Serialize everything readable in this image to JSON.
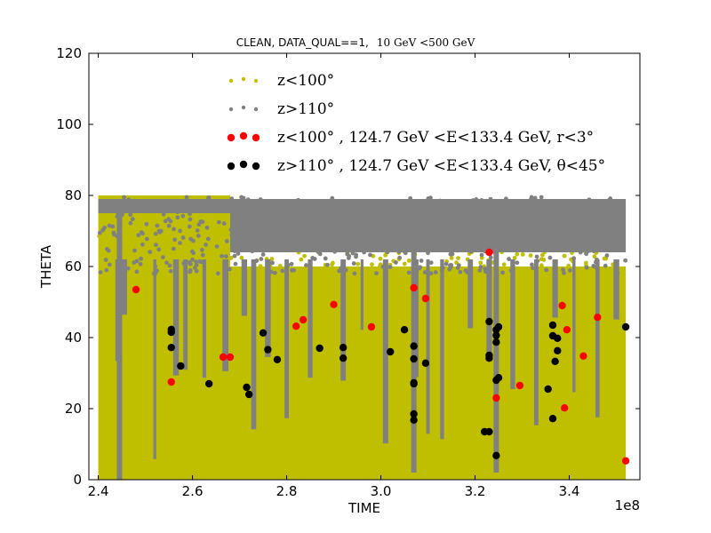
{
  "chart_data": {
    "type": "scatter",
    "title": "CLEAN, DATA_QUAL==1,",
    "title_math": "10 GeV <500 GeV",
    "xlabel": "TIME",
    "ylabel": "THETA",
    "x_offset_label": "1e8",
    "xlim": [
      2.38,
      3.55
    ],
    "ylim": [
      0,
      120
    ],
    "x_ticks": [
      "2.4",
      "2.6",
      "2.8",
      "3.0",
      "3.2",
      "3.4"
    ],
    "x_tick_values": [
      2.4,
      2.6,
      2.8,
      3.0,
      3.2,
      3.4
    ],
    "y_ticks": [
      "0",
      "20",
      "40",
      "60",
      "80",
      "100",
      "120"
    ],
    "y_tick_values": [
      0,
      20,
      40,
      60,
      80,
      100,
      120
    ],
    "grid": false,
    "legend_placement": "top-center",
    "series": [
      {
        "name": "z<100°",
        "color": "#bfbf00",
        "marker_size": "small",
        "band": {
          "x": [
            2.4,
            3.52
          ],
          "y": [
            0,
            80
          ],
          "upper_y": 60
        }
      },
      {
        "name": "z>110°",
        "color": "#808080",
        "marker_size": "small",
        "band": {
          "x": [
            2.4,
            3.52
          ],
          "y": [
            60,
            79
          ],
          "x_dense_start": 2.68
        }
      },
      {
        "name": "z<100° , 124.7 GeV <E<133.4 GeV, r<3°",
        "color": "#ff0000",
        "marker_size": "large",
        "points": [
          [
            2.48,
            53.5
          ],
          [
            2.555,
            27.5
          ],
          [
            2.665,
            34.5
          ],
          [
            2.68,
            34.5
          ],
          [
            2.82,
            43.2
          ],
          [
            2.835,
            45
          ],
          [
            2.9,
            49.3
          ],
          [
            2.98,
            43
          ],
          [
            3.07,
            54
          ],
          [
            3.095,
            51
          ],
          [
            3.23,
            64
          ],
          [
            3.245,
            23
          ],
          [
            3.295,
            26.5
          ],
          [
            3.385,
            49
          ],
          [
            3.395,
            42.2
          ],
          [
            3.39,
            20.2
          ],
          [
            3.43,
            34.8
          ],
          [
            3.46,
            45.7
          ],
          [
            3.52,
            5.3
          ]
        ]
      },
      {
        "name": "z>110° , 124.7 GeV <E<133.4 GeV, θ<45°",
        "color": "#000000",
        "marker_size": "large",
        "points": [
          [
            2.555,
            42.3
          ],
          [
            2.555,
            41.5
          ],
          [
            2.555,
            37.2
          ],
          [
            2.575,
            32
          ],
          [
            2.635,
            27
          ],
          [
            2.715,
            26
          ],
          [
            2.72,
            24
          ],
          [
            2.75,
            41.3
          ],
          [
            2.76,
            36.6
          ],
          [
            2.78,
            33.8
          ],
          [
            2.87,
            37
          ],
          [
            2.92,
            37.2
          ],
          [
            2.92,
            34.2
          ],
          [
            3.02,
            36
          ],
          [
            3.05,
            42.2
          ],
          [
            3.07,
            37.6
          ],
          [
            3.07,
            34
          ],
          [
            3.07,
            27.3
          ],
          [
            3.07,
            27
          ],
          [
            3.07,
            18.5
          ],
          [
            3.07,
            16.8
          ],
          [
            3.095,
            32.8
          ],
          [
            3.22,
            13.5
          ],
          [
            3.23,
            13.5
          ],
          [
            3.23,
            44.5
          ],
          [
            3.23,
            35
          ],
          [
            3.23,
            34.2
          ],
          [
            3.245,
            42.2
          ],
          [
            3.245,
            40.6
          ],
          [
            3.245,
            38.7
          ],
          [
            3.25,
            43
          ],
          [
            3.245,
            28
          ],
          [
            3.25,
            28.7
          ],
          [
            3.245,
            6.8
          ],
          [
            3.355,
            25.5
          ],
          [
            3.365,
            43.5
          ],
          [
            3.365,
            40.5
          ],
          [
            3.375,
            39.8
          ],
          [
            3.375,
            36.3
          ],
          [
            3.37,
            33.3
          ],
          [
            3.365,
            17.2
          ],
          [
            3.52,
            43
          ]
        ]
      }
    ],
    "legend": [
      {
        "text": "z<100°",
        "color": "#bfbf00",
        "size": "small"
      },
      {
        "text": "z>110°",
        "color": "#808080",
        "size": "small"
      },
      {
        "text": "z<100° , 124.7 GeV <E<133.4 GeV, r<3°",
        "color": "#ff0000",
        "size": "large"
      },
      {
        "text": "z>110° , 124.7 GeV <E<133.4 GeV, θ<45°",
        "color": "#000000",
        "size": "large"
      }
    ]
  }
}
